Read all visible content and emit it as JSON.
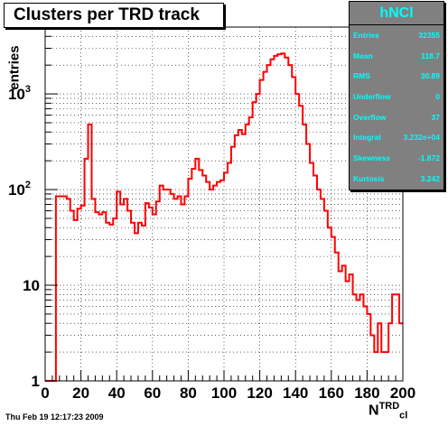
{
  "title": "Clusters per TRD track",
  "timestamp": "Thu Feb 19 12:17:23 2009",
  "stats": {
    "name": "hNCl",
    "rows": [
      {
        "label": "Entries",
        "value": "32355"
      },
      {
        "label": "Mean",
        "value": "118.7"
      },
      {
        "label": "RMS",
        "value": "30.89"
      },
      {
        "label": "Underflow",
        "value": "0"
      },
      {
        "label": "Overflow",
        "value": "37"
      },
      {
        "label": "Integral",
        "value": "3.232e+04"
      },
      {
        "label": "Skewness",
        "value": "-1.872"
      },
      {
        "label": "Kurtosis",
        "value": "3.242"
      }
    ]
  },
  "xlabel": {
    "main": "N",
    "sup": "TRD",
    "sub": "cl"
  },
  "colors": {
    "line": "#ff0000",
    "frame": "#000000",
    "grid": "#000000",
    "stats_bg": "#808080",
    "stats_text": "#00ffff"
  },
  "chart_data": {
    "type": "histogram",
    "title": "Clusters per TRD track",
    "ylabel": "entries",
    "xlabel": "N_cl^TRD",
    "xlim": [
      0,
      200
    ],
    "ylim": [
      1,
      5000
    ],
    "yscale": "log",
    "grid": true,
    "bin_width": 2,
    "x_ticks": [
      "0",
      "20",
      "40",
      "60",
      "80",
      "100",
      "120",
      "140",
      "160",
      "180",
      "200"
    ],
    "y_ticks": [
      {
        "value": 1,
        "base": "1",
        "exp": ""
      },
      {
        "value": 10,
        "base": "10",
        "exp": ""
      },
      {
        "value": 100,
        "base": "10",
        "exp": "2"
      },
      {
        "value": 1000,
        "base": "10",
        "exp": "3"
      }
    ],
    "bins": [
      [
        0,
        0
      ],
      [
        2,
        0
      ],
      [
        4,
        0
      ],
      [
        6,
        85
      ],
      [
        8,
        85
      ],
      [
        10,
        85
      ],
      [
        12,
        80
      ],
      [
        14,
        60
      ],
      [
        16,
        48
      ],
      [
        18,
        63
      ],
      [
        20,
        68
      ],
      [
        22,
        210
      ],
      [
        24,
        480
      ],
      [
        26,
        80
      ],
      [
        28,
        58
      ],
      [
        30,
        55
      ],
      [
        32,
        58
      ],
      [
        34,
        45
      ],
      [
        36,
        43
      ],
      [
        38,
        50
      ],
      [
        40,
        95
      ],
      [
        42,
        70
      ],
      [
        44,
        80
      ],
      [
        46,
        60
      ],
      [
        48,
        45
      ],
      [
        50,
        35
      ],
      [
        52,
        45
      ],
      [
        54,
        42
      ],
      [
        56,
        72
      ],
      [
        58,
        65
      ],
      [
        60,
        55
      ],
      [
        62,
        75
      ],
      [
        64,
        110
      ],
      [
        66,
        100
      ],
      [
        68,
        100
      ],
      [
        70,
        90
      ],
      [
        72,
        80
      ],
      [
        74,
        85
      ],
      [
        76,
        70
      ],
      [
        78,
        85
      ],
      [
        80,
        130
      ],
      [
        82,
        165
      ],
      [
        84,
        210
      ],
      [
        86,
        160
      ],
      [
        88,
        140
      ],
      [
        90,
        120
      ],
      [
        92,
        100
      ],
      [
        94,
        110
      ],
      [
        96,
        120
      ],
      [
        98,
        125
      ],
      [
        100,
        150
      ],
      [
        102,
        190
      ],
      [
        104,
        280
      ],
      [
        106,
        370
      ],
      [
        108,
        420
      ],
      [
        110,
        380
      ],
      [
        112,
        480
      ],
      [
        114,
        570
      ],
      [
        116,
        820
      ],
      [
        118,
        1000
      ],
      [
        120,
        1400
      ],
      [
        122,
        1700
      ],
      [
        124,
        2000
      ],
      [
        126,
        2300
      ],
      [
        128,
        2500
      ],
      [
        130,
        2600
      ],
      [
        132,
        2650
      ],
      [
        134,
        2400
      ],
      [
        136,
        2000
      ],
      [
        138,
        1500
      ],
      [
        140,
        1000
      ],
      [
        142,
        750
      ],
      [
        144,
        480
      ],
      [
        146,
        300
      ],
      [
        148,
        190
      ],
      [
        150,
        140
      ],
      [
        152,
        100
      ],
      [
        154,
        80
      ],
      [
        156,
        60
      ],
      [
        158,
        40
      ],
      [
        160,
        32
      ],
      [
        162,
        22
      ],
      [
        164,
        14
      ],
      [
        166,
        16
      ],
      [
        168,
        11
      ],
      [
        170,
        13
      ],
      [
        172,
        8
      ],
      [
        174,
        7
      ],
      [
        176,
        8
      ],
      [
        178,
        6
      ],
      [
        180,
        5
      ],
      [
        182,
        3
      ],
      [
        184,
        2
      ],
      [
        186,
        4
      ],
      [
        188,
        2
      ],
      [
        190,
        2
      ],
      [
        192,
        4
      ],
      [
        194,
        8
      ],
      [
        196,
        8
      ],
      [
        198,
        4
      ]
    ]
  }
}
